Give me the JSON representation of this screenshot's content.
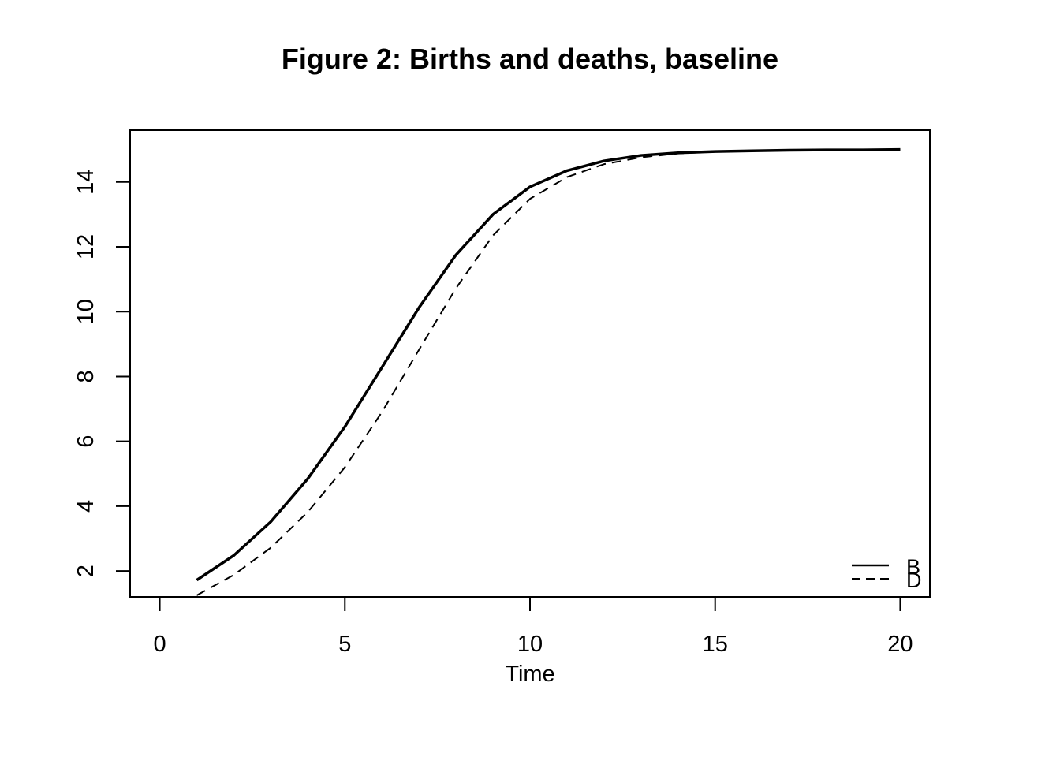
{
  "chart_data": {
    "type": "line",
    "title": "Figure 2: Births and deaths, baseline",
    "xlabel": "Time",
    "ylabel": "",
    "xlim": [
      -0.8,
      20.8
    ],
    "ylim": [
      1.2,
      15.6
    ],
    "xticks": [
      0,
      5,
      10,
      15,
      20
    ],
    "yticks": [
      2,
      4,
      6,
      8,
      10,
      12,
      14
    ],
    "grid": false,
    "legend": "bottom-right",
    "x": [
      1,
      2,
      3,
      4,
      5,
      6,
      7,
      8,
      9,
      10,
      11,
      12,
      13,
      14,
      15,
      16,
      17,
      18,
      19,
      20
    ],
    "series": [
      {
        "name": "B",
        "style": "solid",
        "values": [
          1.72,
          2.48,
          3.52,
          4.85,
          6.45,
          8.28,
          10.12,
          11.75,
          13.0,
          13.85,
          14.35,
          14.65,
          14.82,
          14.9,
          14.94,
          14.96,
          14.98,
          14.99,
          14.99,
          15.0
        ]
      },
      {
        "name": "D",
        "style": "dashed",
        "values": [
          1.25,
          1.88,
          2.72,
          3.82,
          5.2,
          6.9,
          8.82,
          10.72,
          12.35,
          13.48,
          14.15,
          14.55,
          14.76,
          14.88,
          14.93,
          14.96,
          14.98,
          14.99,
          14.99,
          15.0
        ]
      }
    ]
  }
}
